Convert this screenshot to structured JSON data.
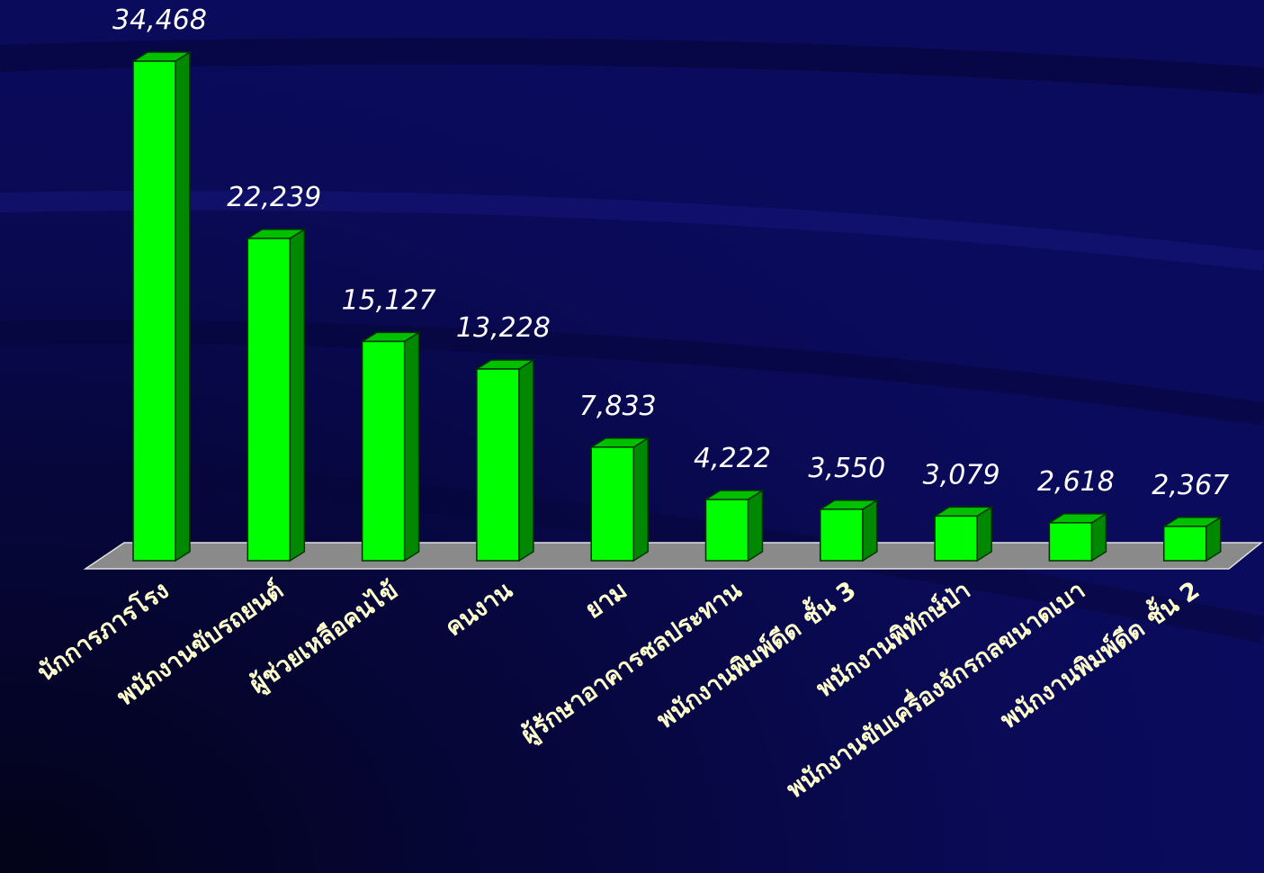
{
  "chart_data": {
    "type": "bar",
    "title": "",
    "xlabel": "",
    "ylabel": "",
    "ylim": [
      0,
      34468
    ],
    "categories": [
      "นักการภารโรง",
      "พนักงานขับรถยนต์",
      "ผู้ช่วยเหลือคนไข้",
      "คนงาน",
      "ยาม",
      "ผู้รักษาอาคารชลประทาน",
      "พนักงานพิมพ์ดีด ชั้น 3",
      "พนักงานพิทักษ์ป่า",
      "พนักงานขับเครื่องจักรกลขนาดเบา",
      "พนักงานพิมพ์ดีด ชั้น 2"
    ],
    "values": [
      34468,
      22239,
      15127,
      13228,
      7833,
      4222,
      3550,
      3079,
      2618,
      2367
    ],
    "value_labels": [
      "34,468",
      "22,239",
      "15,127",
      "13,228",
      "7,833",
      "4,222",
      "3,550",
      "3,079",
      "2,618",
      "2,367"
    ],
    "grid": false,
    "legend": "none",
    "colors": {
      "background": "#0a0a5a",
      "bar_front": "#00ff00",
      "bar_side": "#008800",
      "bar_top": "#00c000",
      "floor": "#8a8a8a",
      "value_text": "#ffffff",
      "category_text": "#ffffcc"
    }
  }
}
